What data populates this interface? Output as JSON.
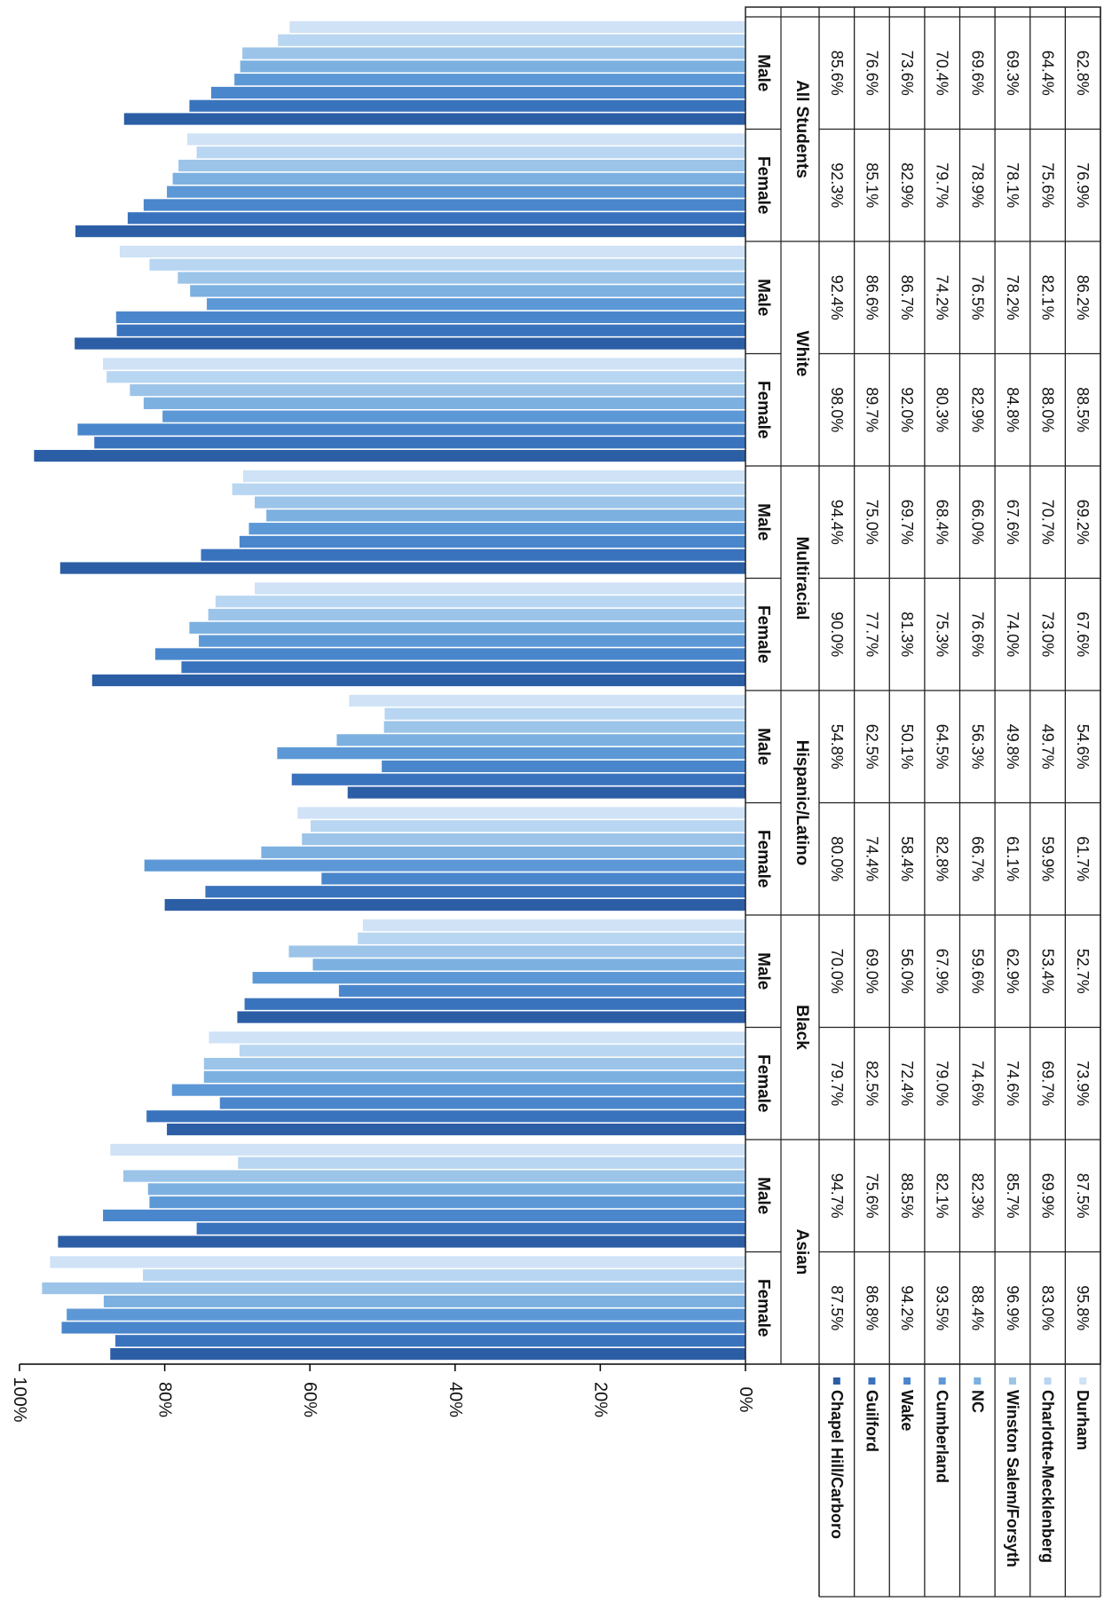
{
  "colors": {
    "series": [
      "#2b5ea5",
      "#3a73bd",
      "#4a86cb",
      "#5d98d6",
      "#7cb0e0",
      "#9cc4e9",
      "#b8d6f1",
      "#cfe2f6"
    ],
    "grid": "#000000",
    "table_border": "#222222"
  },
  "chart_data": {
    "type": "bar",
    "orientation": "vertical bars, page rotated 90 degrees clockwise",
    "y_ticks": [
      "100%",
      "80%",
      "60%",
      "40%",
      "20%",
      "0%"
    ],
    "ylim": [
      0,
      100
    ],
    "groups": [
      "Asian",
      "Black",
      "Hispanic/Latino",
      "Multiracial",
      "White",
      "All Students"
    ],
    "categories": [
      "Female",
      "Male",
      "Female",
      "Male",
      "Female",
      "Male",
      "Female",
      "Male",
      "Female",
      "Male",
      "Female",
      "Male"
    ],
    "series": [
      {
        "name": "Chapel Hill/Carboro",
        "values": [
          87.5,
          94.7,
          79.7,
          70.0,
          80.0,
          54.8,
          90.0,
          94.4,
          98.0,
          92.4,
          92.3,
          85.6
        ],
        "labels": [
          "87.5%",
          "94.7%",
          "79.7%",
          "70.0%",
          "80.0%",
          "54.8%",
          "90.0%",
          "94.4%",
          "98.0%",
          "92.4%",
          "92.3%",
          "85.6%"
        ]
      },
      {
        "name": "Guilford",
        "values": [
          86.8,
          75.6,
          82.5,
          69.0,
          74.4,
          62.5,
          77.7,
          75.0,
          89.7,
          86.6,
          85.1,
          76.6
        ],
        "labels": [
          "86.8%",
          "75.6%",
          "82.5%",
          "69.0%",
          "74.4%",
          "62.5%",
          "77.7%",
          "75.0%",
          "89.7%",
          "86.6%",
          "85.1%",
          "76.6%"
        ]
      },
      {
        "name": "Wake",
        "values": [
          94.2,
          88.5,
          72.4,
          56.0,
          58.4,
          50.1,
          81.3,
          69.7,
          92.0,
          86.7,
          82.9,
          73.6
        ],
        "labels": [
          "94.2%",
          "88.5%",
          "72.4%",
          "56.0%",
          "58.4%",
          "50.1%",
          "81.3%",
          "69.7%",
          "92.0%",
          "86.7%",
          "82.9%",
          "73.6%"
        ]
      },
      {
        "name": "Cumberland",
        "values": [
          93.5,
          82.1,
          79.0,
          67.9,
          82.8,
          64.5,
          75.3,
          68.4,
          80.3,
          74.2,
          79.7,
          70.4
        ],
        "labels": [
          "93.5%",
          "82.1%",
          "79.0%",
          "67.9%",
          "82.8%",
          "64.5%",
          "75.3%",
          "68.4%",
          "80.3%",
          "74.2%",
          "79.7%",
          "70.4%"
        ]
      },
      {
        "name": "NC",
        "values": [
          88.4,
          82.3,
          74.6,
          59.6,
          66.7,
          56.3,
          76.6,
          66.0,
          82.9,
          76.5,
          78.9,
          69.6
        ],
        "labels": [
          "88.4%",
          "82.3%",
          "74.6%",
          "59.6%",
          "66.7%",
          "56.3%",
          "76.6%",
          "66.0%",
          "82.9%",
          "76.5%",
          "78.9%",
          "69.6%"
        ]
      },
      {
        "name": "Winston Salem/Forsyth",
        "values": [
          96.9,
          85.7,
          74.6,
          62.9,
          61.1,
          49.8,
          74.0,
          67.6,
          84.8,
          78.2,
          78.1,
          69.3
        ],
        "labels": [
          "96.9%",
          "85.7%",
          "74.6%",
          "62.9%",
          "61.1%",
          "49.8%",
          "74.0%",
          "67.6%",
          "84.8%",
          "78.2%",
          "78.1%",
          "69.3%"
        ]
      },
      {
        "name": "Charlotte-Mecklenberg",
        "values": [
          83.0,
          69.9,
          69.7,
          53.4,
          59.9,
          49.7,
          73.0,
          70.7,
          88.0,
          82.1,
          75.6,
          64.4
        ],
        "labels": [
          "83.0%",
          "69.9%",
          "69.7%",
          "53.4%",
          "59.9%",
          "49.7%",
          "73.0%",
          "70.7%",
          "88.0%",
          "82.1%",
          "75.6%",
          "64.4%"
        ]
      },
      {
        "name": "Durham",
        "values": [
          95.8,
          87.5,
          73.9,
          52.7,
          61.7,
          54.6,
          67.6,
          69.2,
          88.5,
          86.2,
          76.9,
          62.8
        ],
        "labels": [
          "95.8%",
          "87.5%",
          "73.9%",
          "52.7%",
          "61.7%",
          "54.6%",
          "67.6%",
          "69.2%",
          "88.5%",
          "86.2%",
          "76.9%",
          "62.8%"
        ]
      }
    ]
  }
}
